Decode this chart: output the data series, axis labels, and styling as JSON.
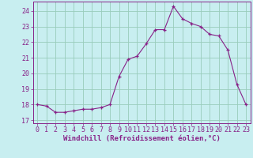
{
  "x": [
    0,
    1,
    2,
    3,
    4,
    5,
    6,
    7,
    8,
    9,
    10,
    11,
    12,
    13,
    14,
    15,
    16,
    17,
    18,
    19,
    20,
    21,
    22,
    23
  ],
  "y": [
    18.0,
    17.9,
    17.5,
    17.5,
    17.6,
    17.7,
    17.7,
    17.8,
    18.0,
    19.8,
    20.9,
    21.1,
    21.9,
    22.8,
    22.8,
    24.3,
    23.5,
    23.2,
    23.0,
    22.5,
    22.4,
    21.5,
    19.3,
    18.0
  ],
  "line_color": "#882288",
  "marker": "+",
  "bg_color": "#c8eef0",
  "grid_color": "#99ccbb",
  "xlabel": "Windchill (Refroidissement éolien,°C)",
  "xlim": [
    -0.5,
    23.5
  ],
  "ylim": [
    16.8,
    24.6
  ],
  "yticks": [
    17,
    18,
    19,
    20,
    21,
    22,
    23,
    24
  ],
  "xticks": [
    0,
    1,
    2,
    3,
    4,
    5,
    6,
    7,
    8,
    9,
    10,
    11,
    12,
    13,
    14,
    15,
    16,
    17,
    18,
    19,
    20,
    21,
    22,
    23
  ],
  "font_color": "#882288",
  "font_size": 6.0,
  "label_font_size": 6.5
}
